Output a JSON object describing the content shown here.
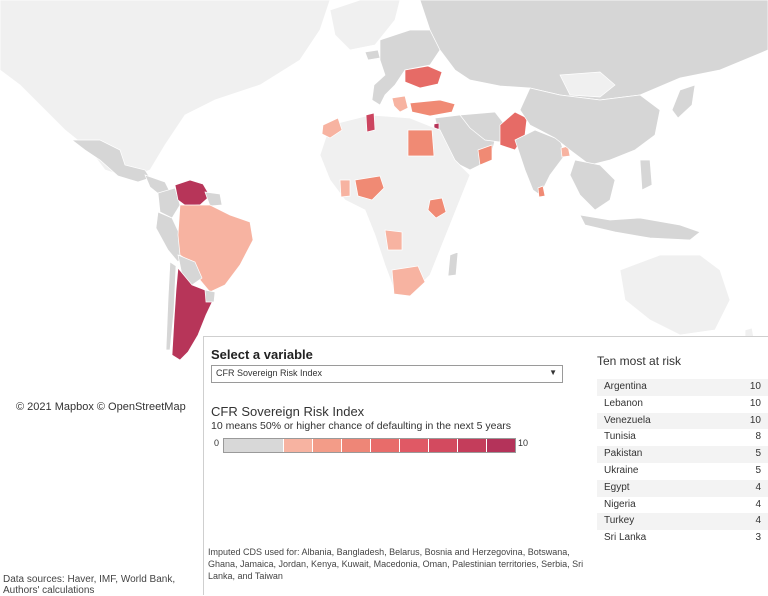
{
  "attribution": "© 2021 Mapbox  © OpenStreetMap",
  "sources": "Data sources: Haver, IMF, World Bank, Authors' calculations",
  "selector": {
    "title": "Select a variable",
    "value": "CFR Sovereign Risk Index"
  },
  "legend": {
    "title": "CFR Sovereign Risk Index",
    "subtitle": "10 means 50% or higher chance of defaulting in the next 5 years",
    "min": "0",
    "max": "10",
    "colors": [
      "#d8d8d8",
      "#f7b3a1",
      "#f39c88",
      "#ee8677",
      "#e86c6a",
      "#e05965",
      "#d34a5f",
      "#c43d5b",
      "#b4335a"
    ]
  },
  "imputed": "Imputed CDS used for: Albania, Bangladesh, Belarus, Bosnia and Herzegovina, Botswana, Ghana, Jamaica, Jordan, Kenya, Kuwait, Macedonia, Oman, Palestinian territories, Serbia,  Sri Lanka, and Taiwan",
  "ten": {
    "title": "Ten most at risk",
    "rows": [
      {
        "name": "Argentina",
        "score": "10"
      },
      {
        "name": "Lebanon",
        "score": "10"
      },
      {
        "name": "Venezuela",
        "score": "10"
      },
      {
        "name": "Tunisia",
        "score": "8"
      },
      {
        "name": "Pakistan",
        "score": "5"
      },
      {
        "name": "Ukraine",
        "score": "5"
      },
      {
        "name": "Egypt",
        "score": "4"
      },
      {
        "name": "Nigeria",
        "score": "4"
      },
      {
        "name": "Turkey",
        "score": "4"
      },
      {
        "name": "Sri Lanka",
        "score": "3"
      }
    ]
  },
  "map_colors": {
    "no_data": "#f0f0f0",
    "base": "#d6d6d6",
    "score_3": "#f7b3a1",
    "score_4": "#f08a74",
    "score_5": "#e66b66",
    "score_8": "#cc4560",
    "score_10": "#b73559"
  }
}
